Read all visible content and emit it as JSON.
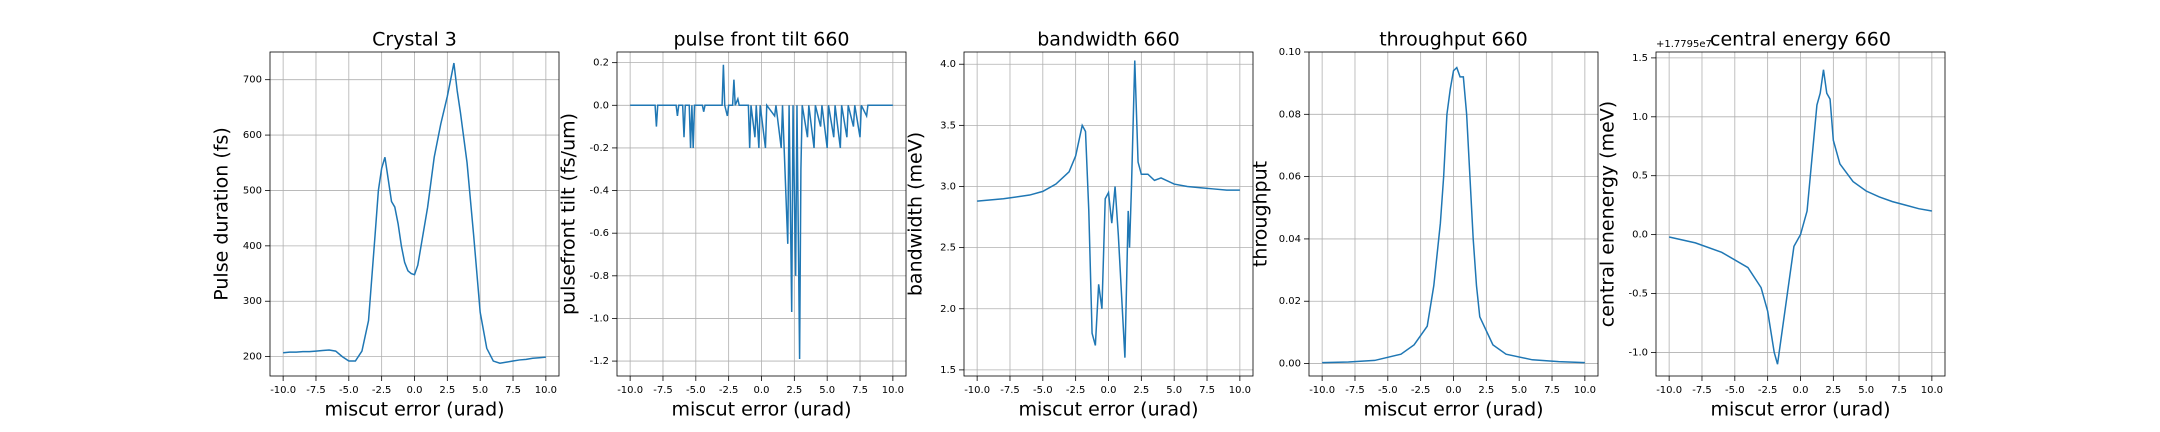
{
  "chart_data": [
    {
      "type": "line",
      "title": "Crystal 3",
      "xlabel": "miscut error (urad)",
      "ylabel": "Pulse duration (fs)",
      "color": "#1f77b4",
      "grid": true,
      "xlim": [
        -11,
        11
      ],
      "ylim": [
        165,
        750
      ],
      "xticks": [
        {
          "value": -10,
          "label": "-10.0"
        },
        -7.5,
        {
          "value": -5,
          "label": "-5.0"
        },
        -2.5,
        {
          "value": 0,
          "label": "0.0"
        },
        2.5,
        {
          "value": 5,
          "label": "5.0"
        },
        7.5,
        {
          "value": 10,
          "label": "10.0"
        }
      ],
      "yticks": [
        200,
        300,
        400,
        500,
        600,
        700
      ],
      "x": [
        -10,
        -9.5,
        -9,
        -8.5,
        -8,
        -7.5,
        -7,
        -6.5,
        -6,
        -5.5,
        -5,
        -4.5,
        -4,
        -3.5,
        -3,
        -2.75,
        -2.5,
        -2.25,
        -2,
        -1.75,
        -1.5,
        -1.25,
        -1,
        -0.75,
        -0.5,
        -0.25,
        0,
        0.25,
        0.5,
        1,
        1.5,
        2,
        2.5,
        2.75,
        3,
        3.25,
        3.5,
        4,
        4.5,
        5,
        5.5,
        6,
        6.5,
        7,
        7.5,
        8,
        8.5,
        9,
        9.5,
        10
      ],
      "values": [
        207,
        208,
        208,
        209,
        209,
        210,
        211,
        212,
        210,
        200,
        192,
        192,
        210,
        265,
        420,
        500,
        540,
        560,
        520,
        480,
        470,
        440,
        400,
        370,
        355,
        350,
        348,
        365,
        400,
        470,
        560,
        620,
        670,
        700,
        730,
        680,
        640,
        550,
        420,
        280,
        215,
        192,
        188,
        190,
        192,
        194,
        195,
        197,
        198,
        199
      ]
    },
    {
      "type": "line",
      "title": "pulse front tilt 660",
      "xlabel": "miscut error (urad)",
      "ylabel": "pulsefront tilt (fs/um)",
      "color": "#1f77b4",
      "grid": true,
      "xlim": [
        -11,
        11
      ],
      "ylim": [
        -1.27,
        0.25
      ],
      "xticks": [
        {
          "value": -10,
          "label": "-10.0"
        },
        -7.5,
        {
          "value": -5,
          "label": "-5.0"
        },
        -2.5,
        {
          "value": 0,
          "label": "0.0"
        },
        2.5,
        {
          "value": 5,
          "label": "5.0"
        },
        7.5,
        {
          "value": 10,
          "label": "10.0"
        }
      ],
      "yticks": [
        -1.2,
        {
          "value": -1,
          "label": "-1.0"
        },
        -0.8,
        -0.6,
        -0.4,
        -0.2,
        {
          "value": 0,
          "label": "0.0"
        },
        0.2
      ],
      "x": [
        -10,
        -8.1,
        -8,
        -7.9,
        -6.5,
        -6.4,
        -6.3,
        -6,
        -5.9,
        -5.8,
        -5.5,
        -5.4,
        -5.3,
        -5.2,
        -5.1,
        -4.5,
        -4.4,
        -4.3,
        -3,
        -2.9,
        -2.8,
        -2.6,
        -2.5,
        -2.2,
        -2.1,
        -2,
        -1.8,
        -1.7,
        -1,
        -0.9,
        -0.8,
        -0.5,
        -0.4,
        -0.2,
        -0.1,
        0.3,
        0.4,
        1,
        1.1,
        1.5,
        1.6,
        2,
        2.1,
        2.3,
        2.4,
        2.6,
        2.7,
        2.9,
        3,
        3.1,
        3.5,
        3.6,
        4,
        4.1,
        4.5,
        4.6,
        5,
        5.1,
        5.5,
        5.6,
        6,
        6.1,
        6.5,
        6.6,
        7,
        7.1,
        7.5,
        7.6,
        8,
        8.1,
        10
      ],
      "values": [
        0,
        0,
        -0.1,
        0,
        0,
        -0.05,
        0,
        0,
        -0.15,
        0,
        0,
        -0.2,
        0,
        -0.2,
        0,
        0,
        -0.03,
        0,
        0,
        0.19,
        0,
        -0.05,
        0,
        0,
        0.12,
        0,
        0.03,
        0,
        0,
        -0.2,
        0,
        -0.15,
        0,
        -0.2,
        0,
        -0.2,
        0,
        -0.05,
        0,
        -0.2,
        0,
        -0.65,
        0,
        -0.97,
        0,
        -0.8,
        0,
        -1.19,
        -0.3,
        0,
        -0.15,
        0,
        -0.2,
        0,
        -0.1,
        0,
        -0.2,
        0,
        -0.15,
        0,
        -0.2,
        0,
        -0.15,
        0,
        -0.1,
        0,
        -0.15,
        0,
        -0.05,
        0,
        0
      ]
    },
    {
      "type": "line",
      "title": "bandwidth 660",
      "xlabel": "miscut error (urad)",
      "ylabel": "bandwidth (meV)",
      "color": "#1f77b4",
      "grid": true,
      "xlim": [
        -11,
        11
      ],
      "ylim": [
        1.45,
        4.1
      ],
      "xticks": [
        {
          "value": -10,
          "label": "-10.0"
        },
        -7.5,
        {
          "value": -5,
          "label": "-5.0"
        },
        -2.5,
        {
          "value": 0,
          "label": "0.0"
        },
        2.5,
        {
          "value": 5,
          "label": "5.0"
        },
        7.5,
        {
          "value": 10,
          "label": "10.0"
        }
      ],
      "yticks": [
        1.5,
        {
          "value": 2,
          "label": "2.0"
        },
        2.5,
        {
          "value": 3,
          "label": "3.0"
        },
        3.5,
        {
          "value": 4,
          "label": "4.0"
        }
      ],
      "x": [
        -10,
        -8,
        -6,
        -5,
        -4,
        -3,
        -2.5,
        -2,
        -1.75,
        -1.5,
        -1.25,
        -1,
        -0.75,
        -0.5,
        -0.25,
        0,
        0.25,
        0.5,
        0.75,
        1,
        1.25,
        1.5,
        1.6,
        1.75,
        2,
        2.25,
        2.5,
        3,
        3.5,
        4,
        5,
        6,
        7,
        8,
        9,
        10
      ],
      "values": [
        2.88,
        2.9,
        2.93,
        2.96,
        3.02,
        3.12,
        3.25,
        3.5,
        3.45,
        2.8,
        1.8,
        1.7,
        2.2,
        2.0,
        2.9,
        2.95,
        2.7,
        3.0,
        2.6,
        2.1,
        1.6,
        2.8,
        2.5,
        3.0,
        4.03,
        3.2,
        3.1,
        3.1,
        3.05,
        3.07,
        3.02,
        3.0,
        2.99,
        2.98,
        2.97,
        2.97
      ]
    },
    {
      "type": "line",
      "title": "throughput 660",
      "xlabel": "miscut error (urad)",
      "ylabel": "throughput",
      "color": "#1f77b4",
      "grid": true,
      "xlim": [
        -11,
        11
      ],
      "ylim": [
        -0.004,
        0.1
      ],
      "xticks": [
        {
          "value": -10,
          "label": "-10.0"
        },
        -7.5,
        {
          "value": -5,
          "label": "-5.0"
        },
        -2.5,
        {
          "value": 0,
          "label": "0.0"
        },
        2.5,
        {
          "value": 5,
          "label": "5.0"
        },
        7.5,
        {
          "value": 10,
          "label": "10.0"
        }
      ],
      "yticks": [
        {
          "value": 0,
          "label": "0.00"
        },
        0.02,
        0.04,
        0.06,
        0.08,
        {
          "value": 0.1,
          "label": "0.10"
        }
      ],
      "x": [
        -10,
        -8,
        -6,
        -4,
        -3,
        -2,
        -1.5,
        -1,
        -0.75,
        -0.5,
        -0.25,
        0,
        0.25,
        0.5,
        0.75,
        1,
        1.25,
        1.5,
        1.75,
        2,
        3,
        4,
        6,
        8,
        10
      ],
      "values": [
        0.0003,
        0.0005,
        0.001,
        0.003,
        0.006,
        0.012,
        0.025,
        0.045,
        0.06,
        0.08,
        0.088,
        0.094,
        0.095,
        0.092,
        0.092,
        0.08,
        0.06,
        0.04,
        0.025,
        0.015,
        0.006,
        0.003,
        0.0012,
        0.0006,
        0.0003
      ]
    },
    {
      "type": "line",
      "title": "central energy 660",
      "xlabel": "miscut error (urad)",
      "ylabel": "central enenergy (meV)",
      "offset_label": "+1.7795e7",
      "color": "#1f77b4",
      "grid": true,
      "xlim": [
        -11,
        11
      ],
      "ylim": [
        -1.2,
        1.55
      ],
      "xticks": [
        {
          "value": -10,
          "label": "-10.0"
        },
        -7.5,
        {
          "value": -5,
          "label": "-5.0"
        },
        -2.5,
        {
          "value": 0,
          "label": "0.0"
        },
        2.5,
        {
          "value": 5,
          "label": "5.0"
        },
        7.5,
        {
          "value": 10,
          "label": "10.0"
        }
      ],
      "yticks": [
        {
          "value": -1,
          "label": "-1.0"
        },
        -0.5,
        {
          "value": 0,
          "label": "0.0"
        },
        0.5,
        {
          "value": 1,
          "label": "1.0"
        },
        1.5
      ],
      "x": [
        -10,
        -8,
        -6,
        -4,
        -3,
        -2.5,
        -2,
        -1.75,
        -1.5,
        -1,
        -0.5,
        0,
        0.25,
        0.5,
        0.75,
        1,
        1.25,
        1.5,
        1.75,
        2,
        2.25,
        2.5,
        3,
        4,
        5,
        6,
        7,
        8,
        9,
        10
      ],
      "values": [
        -0.02,
        -0.07,
        -0.15,
        -0.28,
        -0.45,
        -0.65,
        -1.0,
        -1.1,
        -0.9,
        -0.5,
        -0.1,
        0,
        0.1,
        0.2,
        0.5,
        0.8,
        1.1,
        1.2,
        1.4,
        1.2,
        1.15,
        0.8,
        0.6,
        0.45,
        0.37,
        0.32,
        0.28,
        0.25,
        0.22,
        0.2
      ]
    }
  ]
}
